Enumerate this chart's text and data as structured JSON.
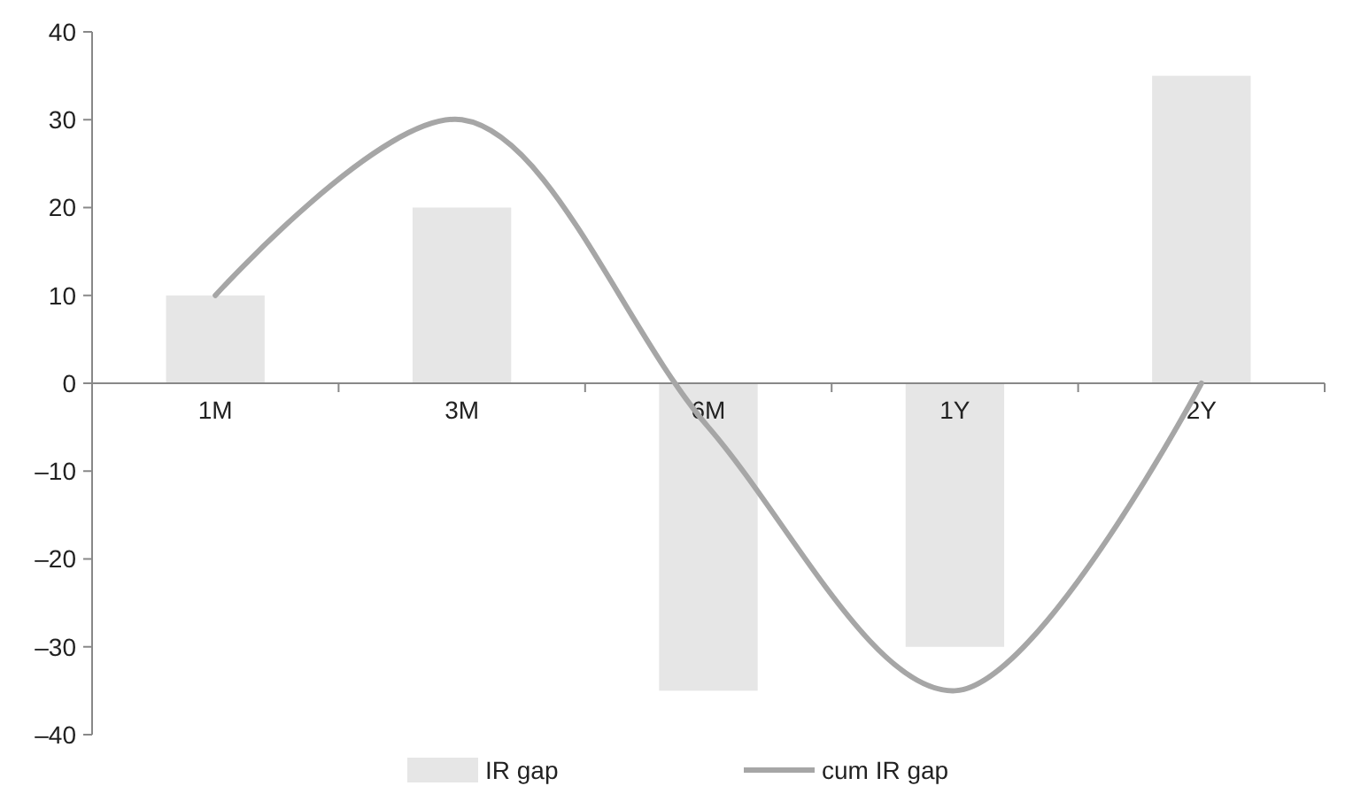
{
  "chart_data": {
    "type": "bar",
    "categories": [
      "1M",
      "3M",
      "6M",
      "1Y",
      "2Y"
    ],
    "series": [
      {
        "name": "IR gap",
        "color": "#e6e6e6",
        "values": [
          10,
          20,
          -35,
          -30,
          35
        ]
      },
      {
        "name": "cum IR gap",
        "type": "line",
        "color": "#a6a6a6",
        "values": [
          10,
          30,
          -5,
          -35,
          0
        ]
      }
    ],
    "ylim": [
      -40,
      40
    ],
    "yticks": [
      {
        "value": -40,
        "label": "–40"
      },
      {
        "value": -30,
        "label": "–30"
      },
      {
        "value": -20,
        "label": "–20"
      },
      {
        "value": -10,
        "label": "–10"
      },
      0,
      10,
      20,
      30,
      40
    ],
    "grid": false,
    "legend": "bottom",
    "marker": "none",
    "line_style": "solid"
  }
}
